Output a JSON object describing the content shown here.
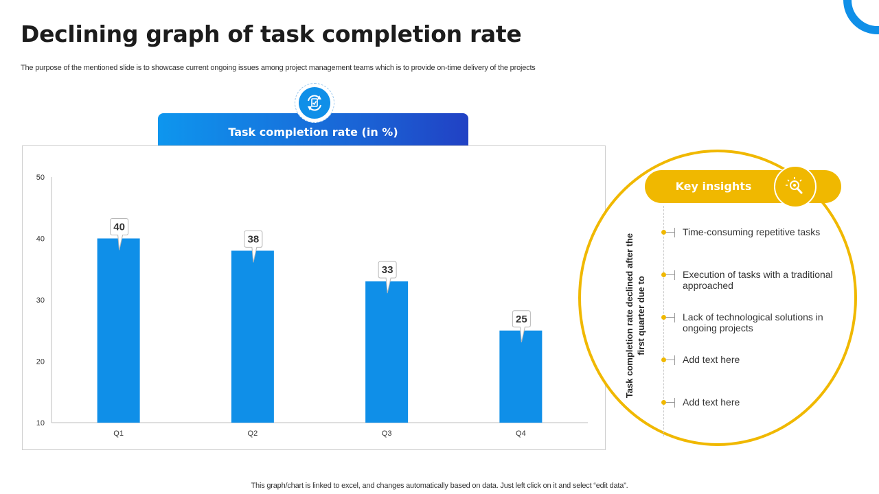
{
  "title": "Declining graph of task completion rate",
  "subtitle": "The purpose of the mentioned slide is to showcase current ongoing issues among project management teams which is to provide on-time delivery of the projects",
  "chart_header": "Task completion rate (in %)",
  "chart_data": {
    "type": "bar",
    "categories": [
      "Q1",
      "Q2",
      "Q3",
      "Q4"
    ],
    "values": [
      40,
      38,
      33,
      25
    ],
    "data_labels": [
      "40",
      "38",
      "33",
      "25"
    ],
    "title": "Task completion rate (in %)",
    "xlabel": "",
    "ylabel": "",
    "ylim": [
      10,
      50
    ],
    "yticks": [
      10,
      20,
      30,
      40,
      50
    ],
    "grid": false,
    "bar_color": "#0f8fe8",
    "legend": "none"
  },
  "insights": {
    "label": "Key insights",
    "icon": "lightbulb-magnifier-icon",
    "vertical_text": "Task completion rate declined after the first quarter due to",
    "items": [
      "Time-consuming repetitive tasks",
      "Execution of tasks with a traditional approached",
      "Lack of technological solutions in ongoing projects",
      "Add text here",
      "Add text here"
    ]
  },
  "footer": "This graph/chart is linked to excel, and changes automatically based on data. Just left click on it and select “edit data”.",
  "colors": {
    "accent_blue": "#0f8fe8",
    "accent_yellow": "#f0b800"
  }
}
